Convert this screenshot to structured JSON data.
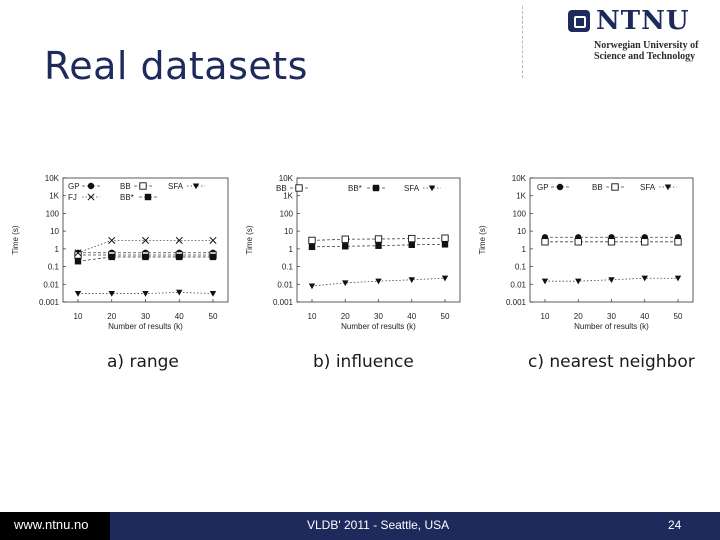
{
  "slide": {
    "title": "Real datasets"
  },
  "logo": {
    "name": "NTNU",
    "line1": "Norwegian University of",
    "line2": "Science and Technology"
  },
  "captions": {
    "a": "a) range",
    "b": "b) influence",
    "c": "c) nearest neighbor"
  },
  "footer": {
    "url": "www.ntnu.no",
    "event": "VLDB' 2011 - Seattle, USA",
    "page": "24"
  },
  "chart_data": [
    {
      "type": "line",
      "ylabel": "Time (s)",
      "xlabel": "Number of results (k)",
      "yscale": "log",
      "ylim": [
        0.001,
        10000
      ],
      "xlim": [
        10,
        50
      ],
      "x": [
        10,
        20,
        30,
        40,
        50
      ],
      "ytick_labels": [
        "0.001",
        "0.01",
        "0.1",
        "1",
        "10",
        "100",
        "1K",
        "10K"
      ],
      "legend": "top-left",
      "series": [
        {
          "name": "GP",
          "marker": "circle-filled",
          "line": "dashed",
          "values": [
            0.6,
            0.6,
            0.6,
            0.6,
            0.6
          ]
        },
        {
          "name": "BB",
          "marker": "square-open",
          "line": "dashed",
          "values": [
            0.45,
            0.45,
            0.45,
            0.45,
            0.45
          ]
        },
        {
          "name": "SFA",
          "marker": "triangle-filled",
          "line": "dotted",
          "values": [
            0.003,
            0.003,
            0.003,
            0.0035,
            0.003
          ]
        },
        {
          "name": "FJ",
          "marker": "cross",
          "line": "dotted",
          "values": [
            0.6,
            3,
            3,
            3,
            3
          ]
        },
        {
          "name": "BB*",
          "marker": "square-filled",
          "line": "dashed",
          "values": [
            0.2,
            0.35,
            0.35,
            0.35,
            0.35
          ]
        }
      ]
    },
    {
      "type": "line",
      "ylabel": "Time (s)",
      "xlabel": "Number of results (k)",
      "yscale": "log",
      "ylim": [
        0.001,
        10000
      ],
      "xlim": [
        10,
        50
      ],
      "x": [
        10,
        20,
        30,
        40,
        50
      ],
      "ytick_labels": [
        "0.001",
        "0.01",
        "0.1",
        "1",
        "10",
        "100",
        "1K",
        "10K"
      ],
      "legend": "top",
      "series": [
        {
          "name": "BB",
          "marker": "square-open",
          "line": "dashed",
          "values": [
            3,
            3.5,
            3.6,
            3.8,
            4
          ]
        },
        {
          "name": "BB*",
          "marker": "square-filled",
          "line": "dashed",
          "values": [
            1.3,
            1.4,
            1.5,
            1.7,
            1.8
          ]
        },
        {
          "name": "SFA",
          "marker": "triangle-filled",
          "line": "dotted",
          "values": [
            0.008,
            0.012,
            0.015,
            0.018,
            0.022
          ]
        }
      ]
    },
    {
      "type": "line",
      "ylabel": "Time (s)",
      "xlabel": "Number of results (k)",
      "yscale": "log",
      "ylim": [
        0.001,
        10000
      ],
      "xlim": [
        10,
        50
      ],
      "x": [
        10,
        20,
        30,
        40,
        50
      ],
      "ytick_labels": [
        "0.001",
        "0.01",
        "0.1",
        "1",
        "10",
        "100",
        "1K",
        "10K"
      ],
      "legend": "top",
      "series": [
        {
          "name": "GP",
          "marker": "circle-filled",
          "line": "dashed",
          "values": [
            4.5,
            4.5,
            4.5,
            4.5,
            4.5
          ]
        },
        {
          "name": "BB",
          "marker": "square-open",
          "line": "dashed",
          "values": [
            2.5,
            2.5,
            2.5,
            2.5,
            2.5
          ]
        },
        {
          "name": "SFA",
          "marker": "triangle-filled",
          "line": "dotted",
          "values": [
            0.015,
            0.015,
            0.018,
            0.022,
            0.022
          ]
        }
      ]
    }
  ]
}
